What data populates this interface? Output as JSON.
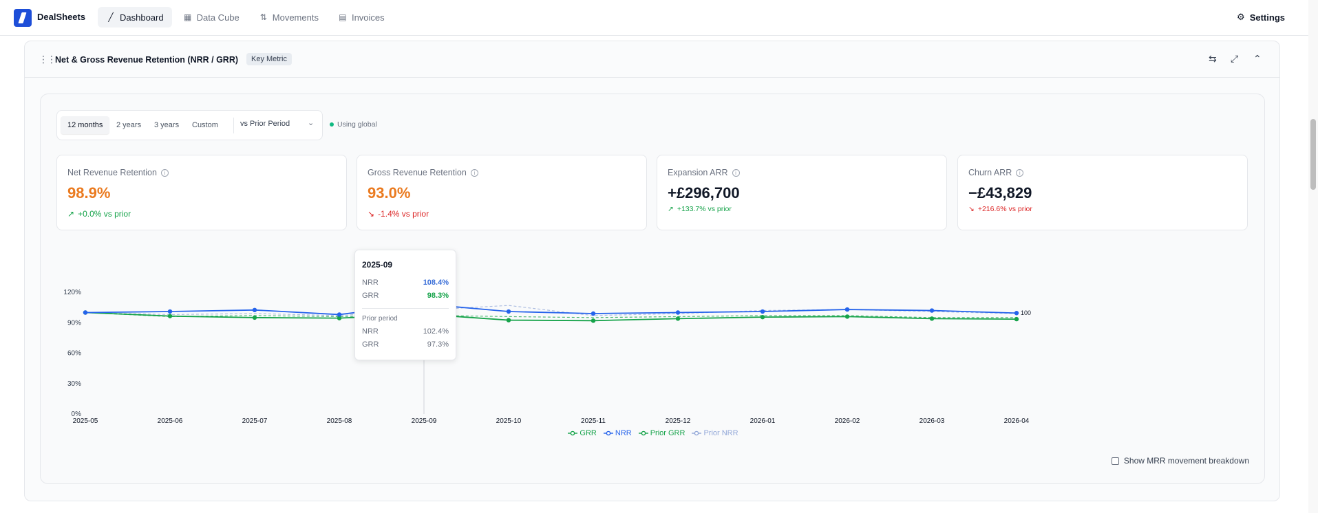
{
  "app": {
    "name": "DealSheets",
    "settings_label": "Settings"
  },
  "nav": [
    {
      "label": "Dashboard",
      "icon": "chart-icon",
      "active": true
    },
    {
      "label": "Data Cube",
      "icon": "table-icon",
      "active": false
    },
    {
      "label": "Movements",
      "icon": "arrows-icon",
      "active": false
    },
    {
      "label": "Invoices",
      "icon": "document-icon",
      "active": false
    }
  ],
  "panel": {
    "title": "Net & Gross Revenue Retention (NRR / GRR)",
    "badge": "Key Metric",
    "period_options": [
      "12 months",
      "2 years",
      "3 years",
      "Custom"
    ],
    "selected_period": "12 months",
    "comparison": "vs Prior Period",
    "global_status": "Using global"
  },
  "kpis": [
    {
      "title": "Net Revenue Retention",
      "value": "98.9%",
      "delta": "+0.0% vs prior",
      "trend": "up",
      "value_color": "#ea7a1f"
    },
    {
      "title": "Gross Revenue Retention",
      "value": "93.0%",
      "delta": "-1.4% vs prior",
      "trend": "down",
      "value_color": "#ea7a1f"
    },
    {
      "title": "Expansion ARR",
      "value": "+£296,700",
      "delta": "+133.7% vs prior",
      "trend": "up",
      "value_color": "#111827"
    },
    {
      "title": "Churn ARR",
      "value": "−£43,829",
      "delta": "+216.6% vs prior",
      "trend": "down",
      "value_color": "#111827"
    }
  ],
  "chart_data": {
    "type": "line",
    "x": [
      "2025-05",
      "2025-06",
      "2025-07",
      "2025-08",
      "2025-09",
      "2025-10",
      "2025-11",
      "2025-12",
      "2026-01",
      "2026-02",
      "2026-03",
      "2026-04"
    ],
    "y_ticks": [
      "0%",
      "30%",
      "60%",
      "90%",
      "120%"
    ],
    "ylim": [
      0,
      120
    ],
    "end_label": "100",
    "series": [
      {
        "name": "GRR",
        "color": "#16a34a",
        "style": "solid",
        "values": [
          100,
          96.5,
          95,
          94.5,
          98.3,
          92.5,
          92,
          94,
          95.5,
          96,
          94,
          93.5
        ]
      },
      {
        "name": "NRR",
        "color": "#2563eb",
        "style": "solid",
        "values": [
          100,
          101,
          102.5,
          98,
          108.4,
          101,
          99,
          100,
          101,
          103,
          102,
          99.5
        ]
      },
      {
        "name": "Prior GRR",
        "color": "#16a34a",
        "style": "dashed",
        "values": [
          100,
          96,
          97,
          96,
          97.3,
          96,
          95,
          96,
          97,
          97,
          95,
          95
        ]
      },
      {
        "name": "Prior NRR",
        "color": "#93a8d8",
        "style": "dashed",
        "values": [
          100,
          98,
          99,
          97,
          102.4,
          107,
          97,
          99,
          102,
          103,
          101,
          99
        ]
      }
    ],
    "tooltip": {
      "title": "2025-09",
      "rows": [
        {
          "label": "NRR",
          "value": "108.4%",
          "color": "#3b6fd8"
        },
        {
          "label": "GRR",
          "value": "98.3%",
          "color": "#16a34a"
        }
      ],
      "prior_title": "Prior period",
      "prior_rows": [
        {
          "label": "NRR",
          "value": "102.4%"
        },
        {
          "label": "GRR",
          "value": "97.3%"
        }
      ]
    }
  },
  "footer": {
    "checkbox_label": "Show MRR movement breakdown"
  }
}
